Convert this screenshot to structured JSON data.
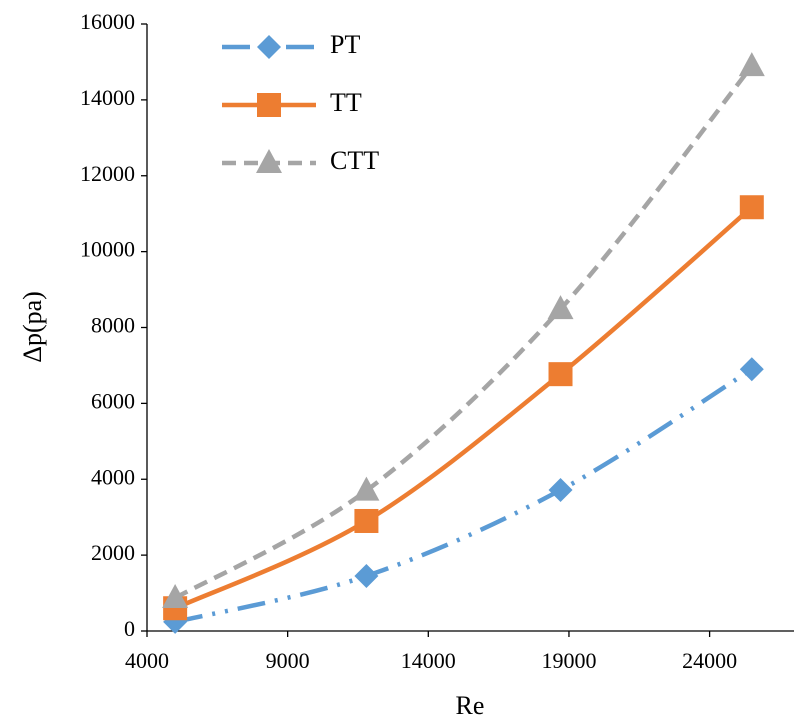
{
  "chart_data": {
    "type": "line",
    "x_label": "Re",
    "y_label": "Δp(pa)",
    "x": [
      5000,
      11800,
      18700,
      25500
    ],
    "series": [
      {
        "name": "PT",
        "color": "#5b9bd5",
        "marker": "diamond",
        "dash": "dash-dot-dot",
        "values": [
          240,
          1450,
          3715,
          6900
        ]
      },
      {
        "name": "TT",
        "color": "#ed7d31",
        "marker": "square",
        "dash": "solid",
        "values": [
          600,
          2900,
          6770,
          11170
        ]
      },
      {
        "name": "CTT",
        "color": "#a5a5a5",
        "marker": "triangle",
        "dash": "dashed",
        "values": [
          870,
          3700,
          8485,
          14890
        ]
      }
    ],
    "xlim": [
      4000,
      27000
    ],
    "xticks": [
      4000,
      9000,
      14000,
      19000,
      24000
    ],
    "ylim": [
      0,
      16000
    ],
    "yticks": [
      0,
      2000,
      4000,
      6000,
      8000,
      10000,
      12000,
      14000,
      16000
    ],
    "grid": false,
    "legend": "top-left"
  }
}
